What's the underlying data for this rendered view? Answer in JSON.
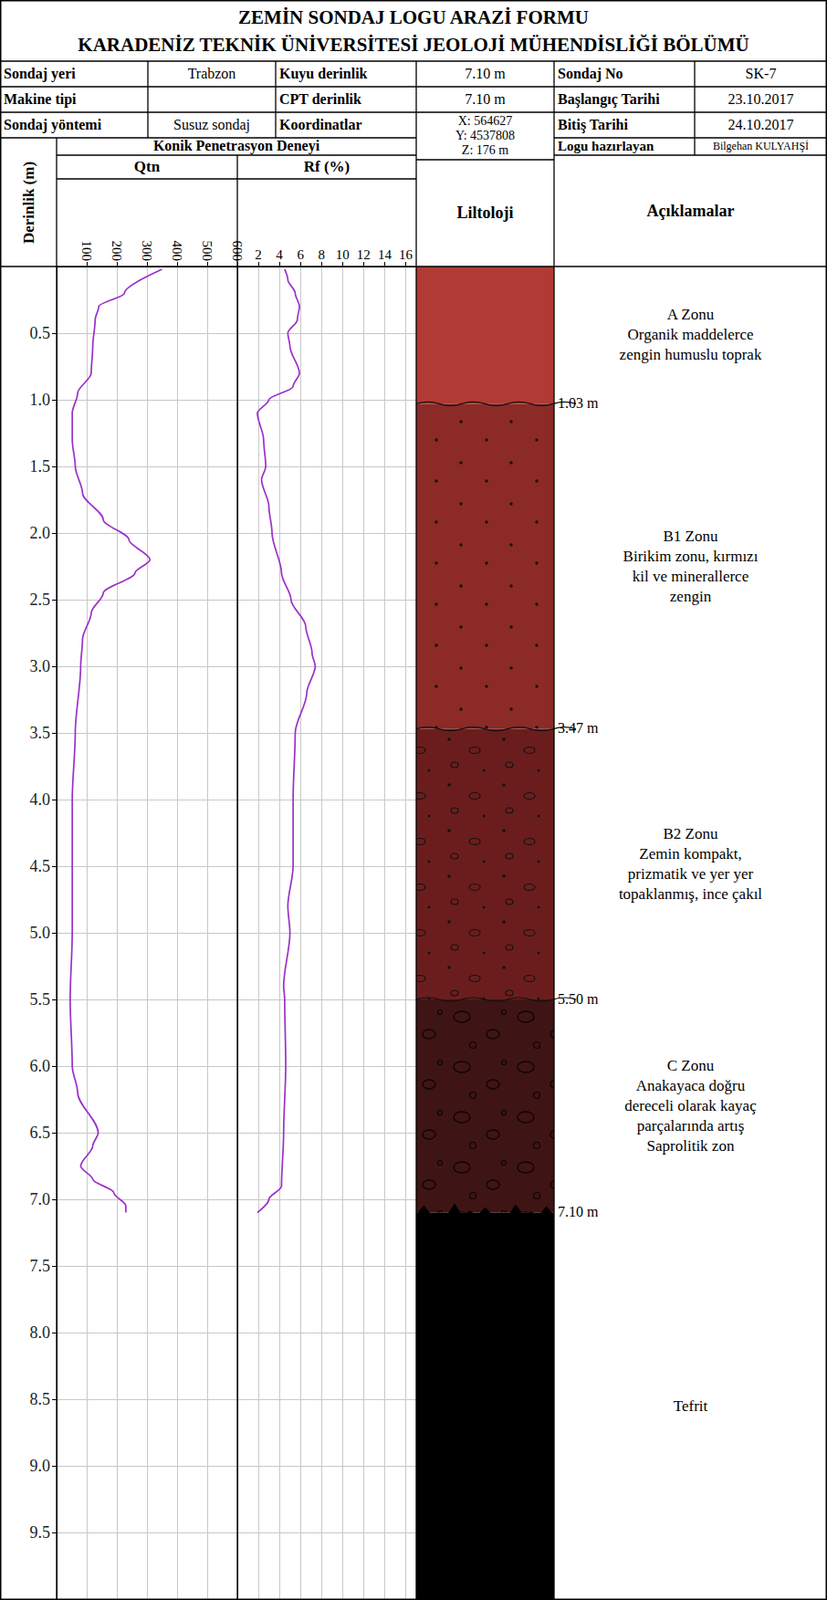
{
  "header": {
    "title": "ZEMİN SONDAJ LOGU ARAZİ FORMU",
    "subtitle": "KARADENİZ TEKNİK ÜNİVERSİTESİ JEOLOJİ MÜHENDİSLİĞİ BÖLÜMÜ"
  },
  "info_table": {
    "rows": [
      [
        [
          "Sondaj yeri",
          "Trabzon"
        ],
        [
          "Kuyu derinlik",
          "7.10 m"
        ],
        [
          "Sondaj No",
          "SK-7"
        ]
      ],
      [
        [
          "Makine tipi",
          null
        ],
        [
          "CPT derinlik",
          "7.10 m"
        ],
        [
          "Başlangıç Tarihi",
          "23.10.2017"
        ]
      ],
      [
        [
          "Sondaj yöntemi",
          "Susuz sondaj"
        ],
        [
          "Koordinatlar",
          [
            "X: 564627",
            "Y: 4537808",
            "Z: 176 m"
          ]
        ],
        [
          "Bitiş Tarihi",
          "24.10.2017"
        ]
      ]
    ]
  },
  "prepared_by": {
    "label": "Logu hazırlayan",
    "value": "Bilgehan KULYAHŞİ"
  },
  "test_title": "Konik Penetrasyon Deneyi",
  "depth_axis": {
    "title": "Derinlik (m)",
    "ylim": [
      0,
      10
    ],
    "yticks": [
      0.5,
      {
        "value": 1,
        "label": "1.0"
      },
      1.5,
      {
        "value": 2,
        "label": "2.0"
      },
      2.5,
      {
        "value": 3,
        "label": "3.0"
      },
      3.5,
      {
        "value": 4,
        "label": "4.0"
      },
      4.5,
      {
        "value": 5,
        "label": "5.0"
      },
      5.5,
      {
        "value": 6,
        "label": "6.0"
      },
      6.5,
      {
        "value": 7,
        "label": "7.0"
      },
      7.5,
      {
        "value": 8,
        "label": "8.0"
      },
      8.5,
      {
        "value": 9,
        "label": "9.0"
      },
      9.5
    ]
  },
  "chart_data": [
    {
      "type": "line",
      "title": "Qtn",
      "xlim": [
        0,
        600
      ],
      "xticks": [
        100,
        200,
        300,
        400,
        500,
        600
      ],
      "grid": true,
      "color": "#9b30c8",
      "depth": [
        0.02,
        0.2,
        0.3,
        0.4,
        0.6,
        0.8,
        0.95,
        1.1,
        1.3,
        1.5,
        1.7,
        1.9,
        2.05,
        2.2,
        2.3,
        2.45,
        2.6,
        2.8,
        3.0,
        3.5,
        4.0,
        4.5,
        5.0,
        5.5,
        6.0,
        6.2,
        6.5,
        6.6,
        6.75,
        6.85,
        6.95,
        7.05,
        7.1
      ],
      "values": [
        350,
        225,
        140,
        128,
        120,
        115,
        70,
        52,
        52,
        62,
        86,
        155,
        240,
        310,
        260,
        155,
        115,
        86,
        80,
        62,
        52,
        52,
        52,
        45,
        52,
        70,
        138,
        120,
        80,
        120,
        190,
        230,
        230
      ]
    },
    {
      "type": "line",
      "title": "Rf (%)",
      "xlim": [
        0,
        17
      ],
      "xticks": [
        2,
        4,
        6,
        8,
        10,
        12,
        14,
        16
      ],
      "grid": true,
      "color": "#9b30c8",
      "depth": [
        0.02,
        0.1,
        0.2,
        0.3,
        0.4,
        0.5,
        0.6,
        0.8,
        0.9,
        1.0,
        1.1,
        1.3,
        1.5,
        1.6,
        1.8,
        2.0,
        2.3,
        2.5,
        2.7,
        2.9,
        3.0,
        3.2,
        3.5,
        4.0,
        4.5,
        4.8,
        5.0,
        5.4,
        5.5,
        6.0,
        6.5,
        6.9,
        7.0,
        7.1
      ],
      "values": [
        4.5,
        4.8,
        5.5,
        5.9,
        5.7,
        4.8,
        5.0,
        5.9,
        5.3,
        3.0,
        1.9,
        2.5,
        2.7,
        2.3,
        3.0,
        3.3,
        4.2,
        5.1,
        6.5,
        7.1,
        7.4,
        6.6,
        5.5,
        5.3,
        5.3,
        4.8,
        5.0,
        4.4,
        4.5,
        4.6,
        4.4,
        4.2,
        3.0,
        1.9
      ]
    }
  ],
  "lithology": {
    "title": "Liltoloji",
    "description_title": "Açıklamalar",
    "zones": [
      {
        "top": 0,
        "bottom": 1.03,
        "bottom_label": "1.03 m",
        "color": "#b23a34",
        "description": [
          "A Zonu",
          "Organik maddelerce",
          "zengin humuslu toprak"
        ]
      },
      {
        "top": 1.03,
        "bottom": 3.47,
        "bottom_label": "3.47 m",
        "color": "#8c2a27",
        "description": [
          "B1 Zonu",
          "Birikim zonu, kırmızı",
          "kil ve minerallerce",
          "zengin"
        ]
      },
      {
        "top": 3.47,
        "bottom": 5.5,
        "bottom_label": "5.50 m",
        "color": "#6b1d1d",
        "description": [
          "B2 Zonu",
          "Zemin kompakt,",
          "prizmatik ve yer yer",
          "topaklanmış, ince çakıl"
        ]
      },
      {
        "top": 5.5,
        "bottom": 7.1,
        "bottom_label": "7.10 m",
        "color": "#3f1414",
        "description": [
          "C Zonu",
          "Anakayaca doğru",
          "dereceli olarak kayaç",
          "parçalarında artış",
          "Saprolitik zon"
        ]
      },
      {
        "top": 7.1,
        "color": "#000000",
        "description": [
          "Tefrit"
        ]
      }
    ]
  }
}
